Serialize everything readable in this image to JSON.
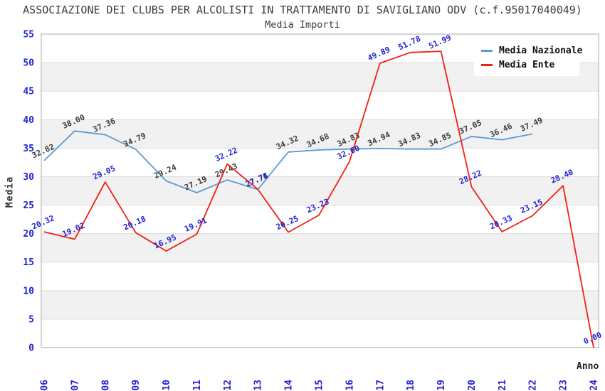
{
  "chart_data": {
    "type": "line",
    "title": "ASSOCIAZIONE DEI CLUBS PER ALCOLISTI IN TRATTAMENTO DI SAVIGLIANO ODV (c.f.95017040049)",
    "subtitle": "Media Importi",
    "xlabel": "Anno",
    "ylabel": "Media",
    "x": [
      2006,
      2007,
      2008,
      2009,
      2010,
      2011,
      2012,
      2013,
      2014,
      2015,
      2016,
      2017,
      2018,
      2019,
      2020,
      2021,
      2022,
      2023,
      2024
    ],
    "series": [
      {
        "name": "Media Nazionale",
        "color": "#5B9BD5",
        "label_color": "#3c3c3c",
        "values": [
          32.82,
          38.0,
          37.36,
          34.79,
          29.24,
          27.19,
          29.43,
          27.74,
          34.32,
          34.68,
          34.83,
          34.94,
          34.83,
          34.85,
          37.05,
          36.46,
          37.49,
          null,
          null
        ]
      },
      {
        "name": "Media Ente",
        "color": "#F02015",
        "label_color": "#2222D2",
        "values": [
          20.32,
          19.02,
          29.05,
          20.18,
          16.95,
          19.91,
          32.22,
          27.78,
          20.25,
          23.23,
          32.6,
          49.89,
          51.78,
          51.99,
          28.22,
          20.33,
          23.15,
          28.4,
          0.0
        ]
      }
    ],
    "ylim": [
      0,
      55
    ],
    "ytick_step": 5,
    "grid": true,
    "legend_position": "top-right",
    "axis_tick_color": "#2222D2",
    "band_colors": [
      "#ffffff",
      "#f1f1f1"
    ],
    "gridline_color": "#dcdcdc",
    "border_color": "#ababab"
  }
}
